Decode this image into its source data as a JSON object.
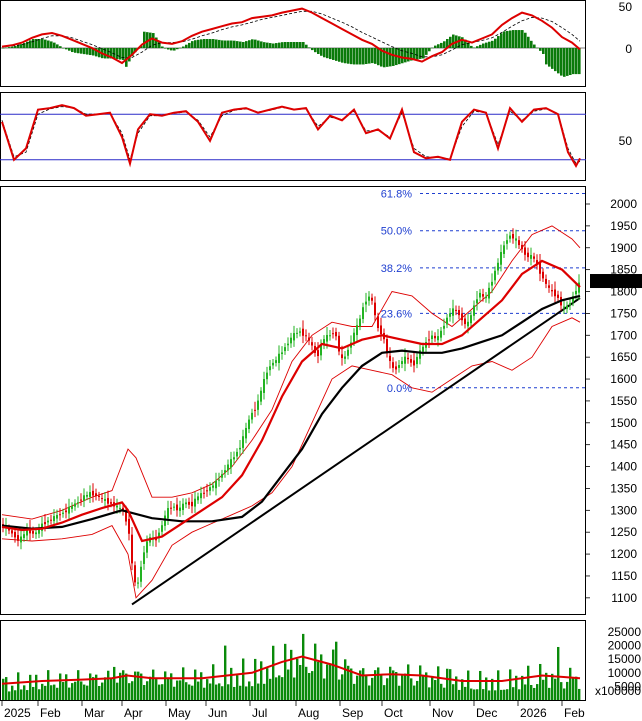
{
  "chart_data": [
    {
      "panel": "macd",
      "type": "line",
      "y_ticks": [
        "50",
        "0"
      ],
      "series": [
        {
          "color": "#dd0000",
          "x": [
            0,
            10,
            20,
            30,
            40,
            50,
            60,
            70,
            80,
            90,
            100,
            110,
            120,
            130,
            140,
            150,
            160,
            170,
            180,
            190,
            200,
            210,
            220,
            230,
            240,
            250,
            260,
            270,
            280,
            290,
            300,
            310,
            320,
            330,
            340,
            350,
            360,
            370,
            380,
            390,
            400,
            410,
            420,
            430,
            440,
            450,
            460,
            470,
            480,
            490,
            500,
            510,
            520,
            530,
            540,
            550,
            560,
            570,
            578
          ],
          "values": [
            2,
            4,
            8,
            15,
            20,
            22,
            18,
            12,
            6,
            0,
            -8,
            -14,
            -22,
            -10,
            5,
            14,
            8,
            6,
            10,
            18,
            24,
            28,
            32,
            36,
            38,
            44,
            46,
            48,
            52,
            55,
            58,
            52,
            44,
            36,
            28,
            20,
            12,
            6,
            -4,
            -10,
            -14,
            -16,
            -20,
            -12,
            -6,
            6,
            12,
            8,
            14,
            20,
            34,
            44,
            52,
            48,
            40,
            30,
            16,
            8,
            -2
          ]
        },
        {
          "color": "#000000",
          "x": [
            0,
            10,
            20,
            30,
            40,
            50,
            60,
            70,
            80,
            90,
            100,
            110,
            120,
            130,
            140,
            150,
            160,
            170,
            180,
            190,
            200,
            210,
            220,
            230,
            240,
            250,
            260,
            270,
            280,
            290,
            300,
            310,
            320,
            330,
            340,
            350,
            360,
            370,
            380,
            390,
            400,
            410,
            420,
            430,
            440,
            450,
            460,
            470,
            480,
            490,
            500,
            510,
            520,
            530,
            540,
            550,
            560,
            570,
            578
          ],
          "values": [
            2,
            3,
            5,
            9,
            14,
            18,
            18,
            15,
            10,
            5,
            -1,
            -7,
            -14,
            -14,
            -6,
            4,
            8,
            8,
            9,
            13,
            18,
            22,
            27,
            31,
            34,
            38,
            42,
            45,
            48,
            51,
            54,
            54,
            50,
            44,
            38,
            31,
            23,
            16,
            9,
            2,
            -4,
            -8,
            -13,
            -13,
            -10,
            -3,
            5,
            8,
            11,
            15,
            23,
            32,
            40,
            45,
            44,
            39,
            30,
            20,
            10
          ]
        }
      ],
      "histogram_x_step": 3
    },
    {
      "panel": "stochastic",
      "type": "line",
      "y_ticks": [
        "50"
      ],
      "levels": [
        80,
        20
      ],
      "series": [
        {
          "color": "#dd0000",
          "x": [
            0,
            12,
            24,
            36,
            48,
            60,
            72,
            84,
            96,
            108,
            120,
            128,
            136,
            148,
            160,
            172,
            184,
            196,
            208,
            220,
            232,
            244,
            256,
            268,
            280,
            292,
            304,
            316,
            328,
            340,
            352,
            364,
            376,
            388,
            400,
            412,
            424,
            436,
            448,
            460,
            472,
            484,
            496,
            508,
            520,
            532,
            544,
            556,
            566,
            574,
            578
          ],
          "values": [
            70,
            20,
            35,
            86,
            88,
            92,
            88,
            78,
            80,
            82,
            50,
            15,
            60,
            80,
            78,
            82,
            84,
            70,
            45,
            82,
            86,
            88,
            82,
            86,
            90,
            86,
            88,
            60,
            78,
            72,
            86,
            55,
            60,
            48,
            86,
            30,
            22,
            24,
            20,
            70,
            86,
            82,
            35,
            88,
            70,
            86,
            88,
            80,
            30,
            12,
            22
          ]
        },
        {
          "color": "#000000",
          "x": [
            0,
            12,
            24,
            36,
            48,
            60,
            72,
            84,
            96,
            108,
            120,
            128,
            136,
            148,
            160,
            172,
            184,
            196,
            208,
            220,
            232,
            244,
            256,
            268,
            280,
            292,
            304,
            316,
            328,
            340,
            352,
            364,
            376,
            388,
            400,
            412,
            424,
            436,
            448,
            460,
            472,
            484,
            496,
            508,
            520,
            532,
            544,
            556,
            566,
            574,
            578
          ],
          "values": [
            72,
            24,
            30,
            80,
            87,
            90,
            88,
            80,
            80,
            81,
            55,
            20,
            55,
            78,
            78,
            81,
            83,
            72,
            50,
            78,
            85,
            87,
            83,
            85,
            89,
            86,
            87,
            64,
            76,
            73,
            84,
            58,
            59,
            50,
            82,
            35,
            24,
            23,
            21,
            64,
            84,
            82,
            40,
            84,
            72,
            84,
            87,
            81,
            35,
            15,
            18
          ]
        }
      ]
    },
    {
      "panel": "price",
      "type": "candlestick",
      "y_ticks": [
        "2000",
        "1950",
        "1900",
        "1850",
        "1800",
        "1750",
        "1700",
        "1650",
        "1600",
        "1550",
        "1500",
        "1450",
        "1400",
        "1350",
        "1300",
        "1250",
        "1200",
        "1150",
        "1100"
      ],
      "last_price_label": "1824.090",
      "fib_levels": [
        {
          "label": "61.8%",
          "value": 2024
        },
        {
          "label": "50.0%",
          "value": 1939
        },
        {
          "label": "38.2%",
          "value": 1854
        },
        {
          "label": "23.6%",
          "value": 1750
        },
        {
          "label": "0.0%",
          "value": 1580
        }
      ],
      "x_labels": [
        "2025",
        "Feb",
        "Mar",
        "Apr",
        "May",
        "Jun",
        "Jul",
        "Aug",
        "Sep",
        "Oct",
        "Nov",
        "Dec",
        "2026",
        "Feb"
      ],
      "close_x": [
        0,
        8,
        16,
        24,
        32,
        40,
        48,
        56,
        64,
        72,
        80,
        88,
        96,
        104,
        112,
        120,
        126,
        130,
        134,
        140,
        146,
        152,
        158,
        164,
        170,
        176,
        182,
        188,
        194,
        200,
        206,
        212,
        218,
        224,
        230,
        236,
        242,
        248,
        254,
        260,
        266,
        272,
        278,
        284,
        290,
        296,
        302,
        308,
        314,
        320,
        326,
        332,
        338,
        344,
        350,
        356,
        362,
        368,
        374,
        380,
        386,
        392,
        398,
        404,
        410,
        416,
        422,
        428,
        434,
        440,
        446,
        452,
        458,
        464,
        470,
        476,
        482,
        488,
        494,
        500,
        506,
        512,
        518,
        524,
        530,
        536,
        542,
        548,
        554,
        560,
        566,
        572,
        578
      ],
      "close": [
        1265,
        1250,
        1230,
        1255,
        1245,
        1270,
        1280,
        1290,
        1300,
        1315,
        1330,
        1340,
        1330,
        1320,
        1310,
        1300,
        1250,
        1150,
        1120,
        1200,
        1240,
        1230,
        1260,
        1300,
        1310,
        1300,
        1320,
        1310,
        1330,
        1340,
        1350,
        1360,
        1380,
        1400,
        1420,
        1440,
        1480,
        1520,
        1540,
        1590,
        1630,
        1640,
        1660,
        1680,
        1700,
        1710,
        1700,
        1680,
        1650,
        1690,
        1700,
        1710,
        1640,
        1660,
        1700,
        1730,
        1780,
        1790,
        1720,
        1700,
        1640,
        1620,
        1640,
        1650,
        1630,
        1660,
        1680,
        1700,
        1690,
        1720,
        1750,
        1760,
        1740,
        1720,
        1760,
        1800,
        1780,
        1820,
        1860,
        1900,
        1930,
        1920,
        1900,
        1880,
        1880,
        1850,
        1820,
        1800,
        1790,
        1760,
        1770,
        1800,
        1824
      ],
      "ma_red": {
        "color": "#dd0000",
        "x": [
          0,
          20,
          40,
          60,
          80,
          100,
          120,
          126,
          140,
          160,
          180,
          200,
          220,
          240,
          260,
          280,
          300,
          320,
          340,
          360,
          380,
          400,
          420,
          440,
          460,
          480,
          500,
          520,
          540,
          560,
          578
        ],
        "values": [
          1262,
          1255,
          1258,
          1272,
          1290,
          1305,
          1318,
          1300,
          1230,
          1240,
          1270,
          1300,
          1330,
          1380,
          1460,
          1560,
          1640,
          1680,
          1670,
          1690,
          1700,
          1690,
          1680,
          1680,
          1700,
          1740,
          1780,
          1840,
          1870,
          1850,
          1810
        ]
      },
      "ma_black": {
        "color": "#000000",
        "x": [
          0,
          30,
          60,
          90,
          120,
          150,
          180,
          210,
          240,
          260,
          280,
          300,
          320,
          340,
          360,
          380,
          400,
          420,
          440,
          460,
          480,
          500,
          520,
          540,
          560,
          578
        ],
        "values": [
          1265,
          1258,
          1262,
          1280,
          1300,
          1282,
          1275,
          1275,
          1285,
          1320,
          1380,
          1440,
          1520,
          1580,
          1630,
          1660,
          1665,
          1660,
          1660,
          1670,
          1685,
          1700,
          1730,
          1760,
          1780,
          1790
        ]
      },
      "bb_upper": {
        "color": "#dd0000",
        "x": [
          0,
          30,
          60,
          90,
          110,
          126,
          134,
          150,
          170,
          190,
          210,
          230,
          250,
          270,
          290,
          310,
          330,
          350,
          370,
          390,
          410,
          430,
          450,
          470,
          490,
          510,
          530,
          550,
          570,
          578
        ],
        "values": [
          1290,
          1280,
          1300,
          1330,
          1345,
          1440,
          1420,
          1330,
          1330,
          1340,
          1360,
          1400,
          1460,
          1530,
          1640,
          1700,
          1730,
          1720,
          1720,
          1800,
          1790,
          1750,
          1720,
          1760,
          1800,
          1870,
          1930,
          1950,
          1920,
          1900
        ]
      },
      "bb_lower": {
        "color": "#dd0000",
        "x": [
          0,
          30,
          60,
          90,
          110,
          126,
          134,
          150,
          170,
          190,
          210,
          230,
          250,
          270,
          290,
          310,
          330,
          350,
          370,
          390,
          410,
          430,
          450,
          470,
          490,
          510,
          530,
          550,
          570,
          578
        ],
        "values": [
          1235,
          1230,
          1235,
          1245,
          1265,
          1200,
          1100,
          1140,
          1220,
          1250,
          1270,
          1290,
          1310,
          1340,
          1400,
          1500,
          1600,
          1630,
          1620,
          1610,
          1580,
          1570,
          1600,
          1630,
          1640,
          1620,
          1650,
          1720,
          1740,
          1730
        ]
      },
      "trendline": {
        "x": [
          130,
          578
        ],
        "values": [
          1085,
          1785
        ]
      }
    },
    {
      "panel": "volume",
      "type": "bar",
      "y_ticks": [
        "25000",
        "20000",
        "15000",
        "10000",
        "5000"
      ],
      "unit_label": "x100000",
      "bar_x_step": 3,
      "avg_line": {
        "color": "#dd0000",
        "x": [
          0,
          40,
          80,
          110,
          125,
          150,
          200,
          250,
          280,
          300,
          330,
          360,
          390,
          420,
          460,
          500,
          520,
          540,
          560,
          578
        ],
        "values": [
          6000,
          7000,
          7500,
          8000,
          9000,
          8000,
          8000,
          10000,
          14000,
          16000,
          13000,
          9000,
          9500,
          9000,
          7000,
          7000,
          8000,
          9000,
          8500,
          8000
        ]
      }
    }
  ]
}
